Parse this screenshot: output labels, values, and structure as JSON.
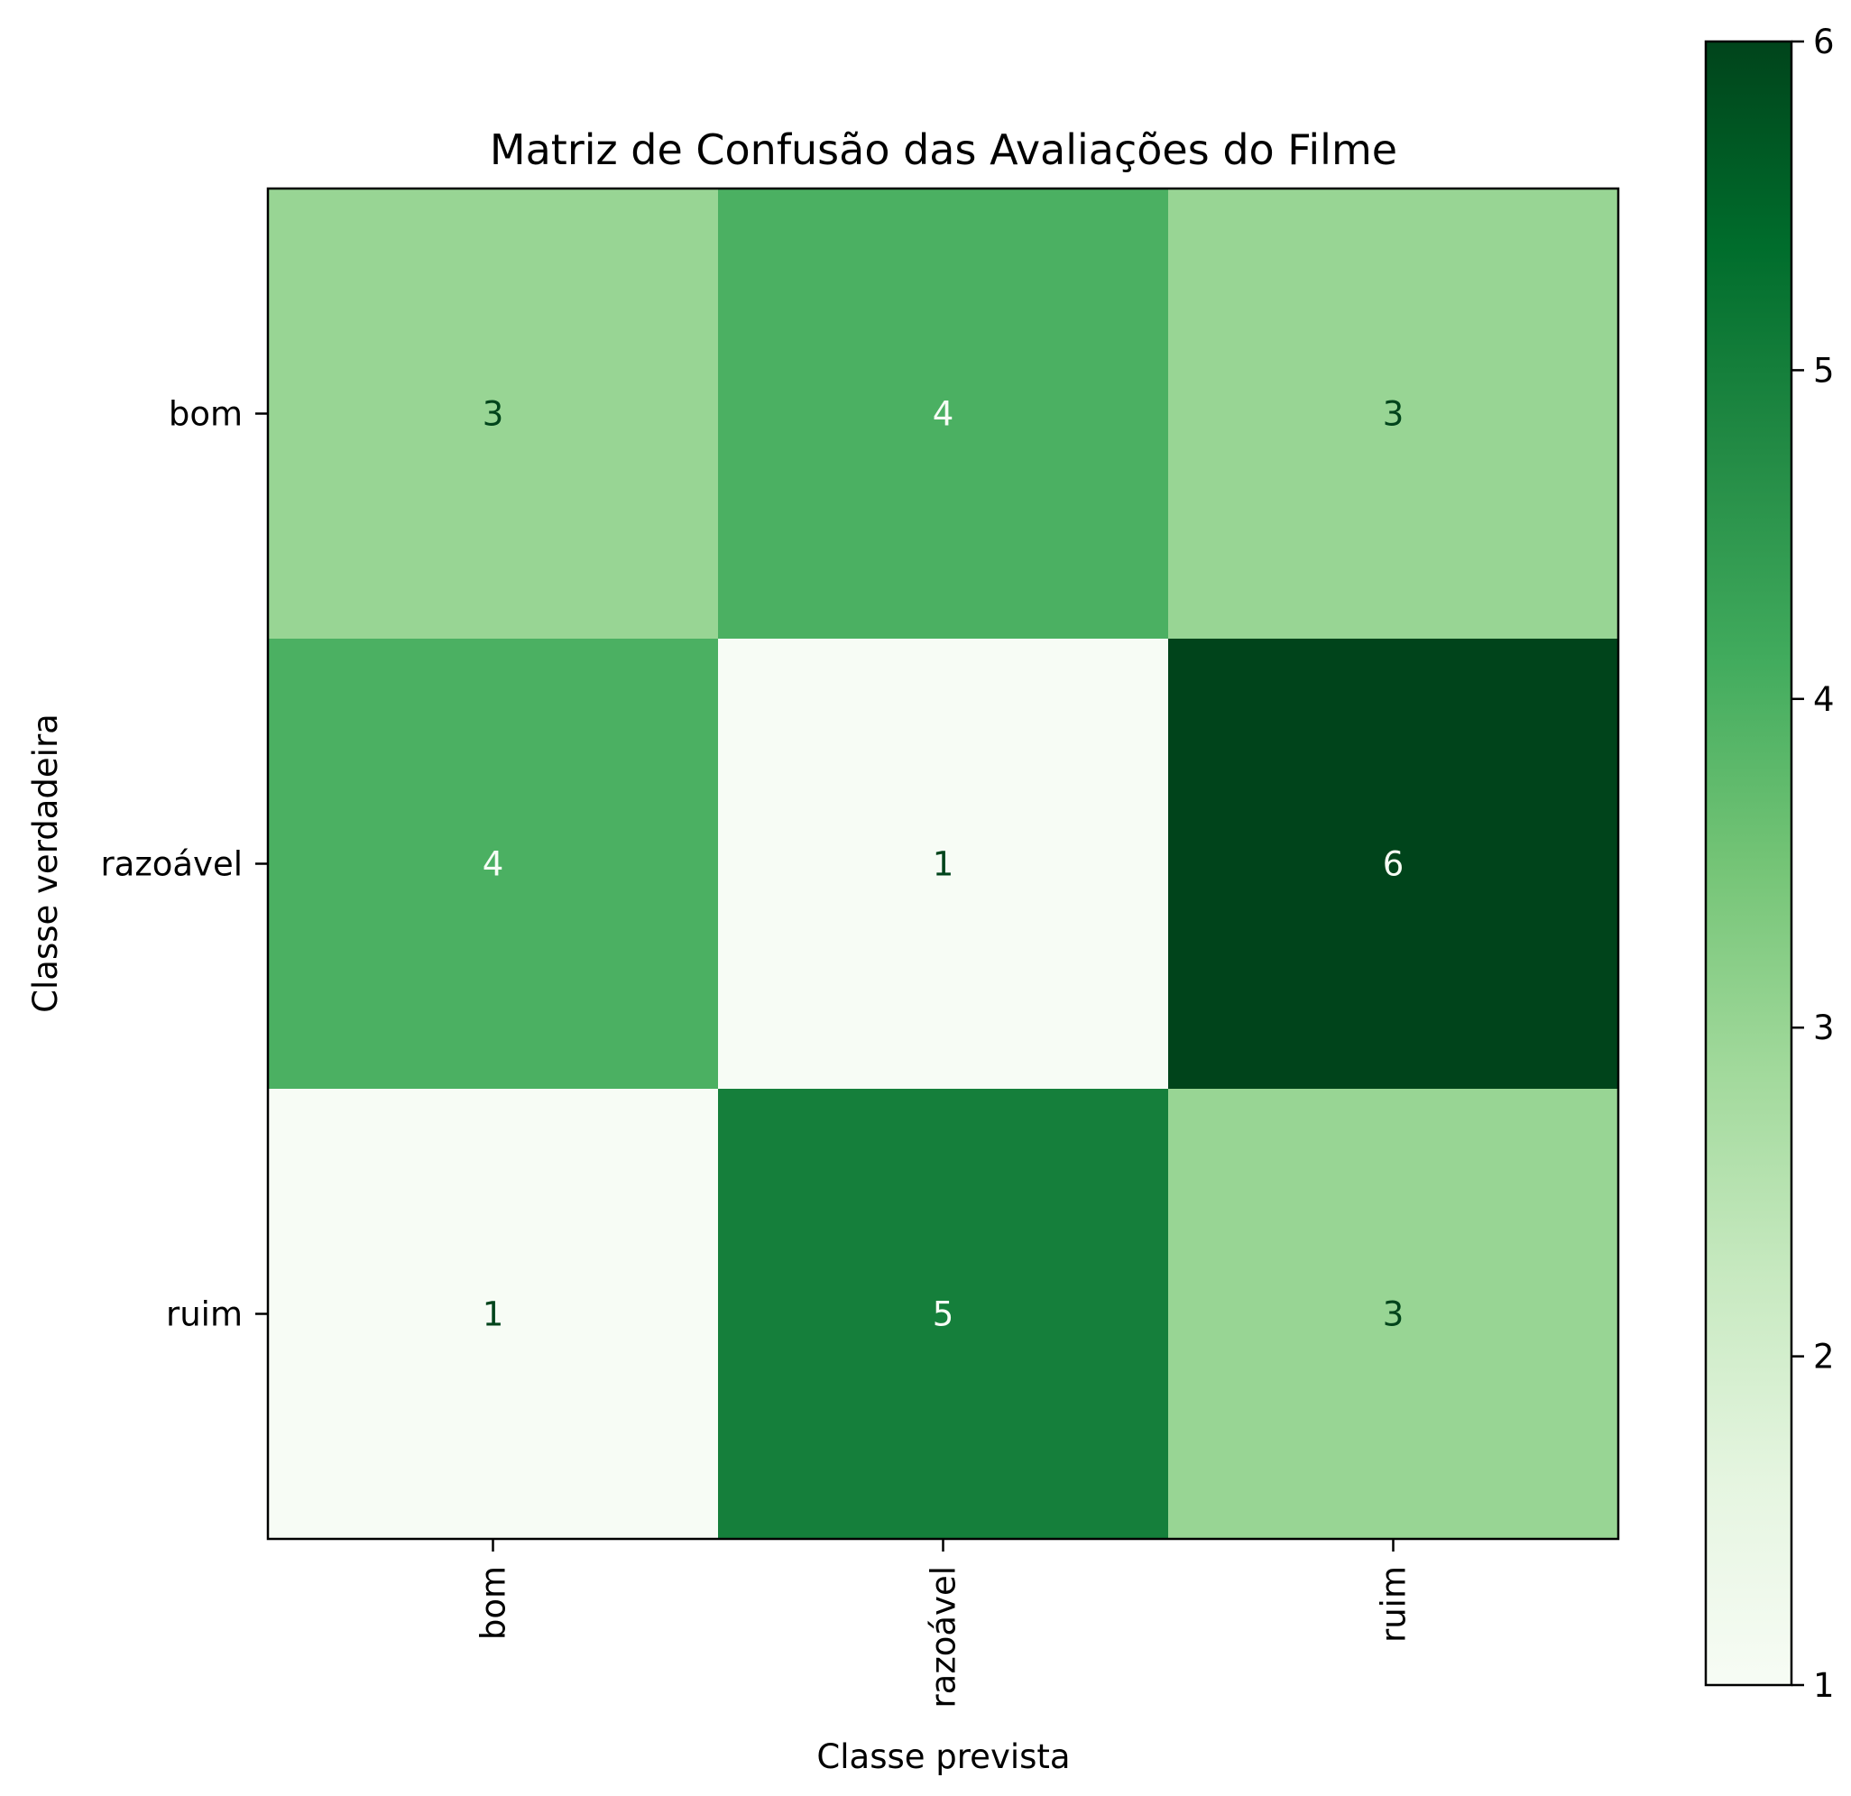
{
  "chart_data": {
    "type": "heatmap",
    "title": "Matriz de Confusão das Avaliações do Filme",
    "xlabel": "Classe prevista",
    "ylabel": "Classe verdadeira",
    "x_categories": [
      "bom",
      "razoável",
      "ruim"
    ],
    "y_categories": [
      "bom",
      "razoável",
      "ruim"
    ],
    "values": [
      [
        3,
        4,
        3
      ],
      [
        4,
        1,
        6
      ],
      [
        1,
        5,
        3
      ]
    ],
    "colormap": "Greens",
    "colorbar": {
      "min": 1,
      "max": 6,
      "ticks": [
        1,
        2,
        3,
        4,
        5,
        6
      ]
    },
    "colors": {
      "cmap_stops": [
        "#f7fcf5",
        "#e5f5e0",
        "#c7e9c0",
        "#a1d99b",
        "#74c476",
        "#41ab5d",
        "#238b45",
        "#006d2c",
        "#00441b"
      ],
      "text_dark": "#00441b",
      "text_light": "#f7fcf5"
    }
  }
}
